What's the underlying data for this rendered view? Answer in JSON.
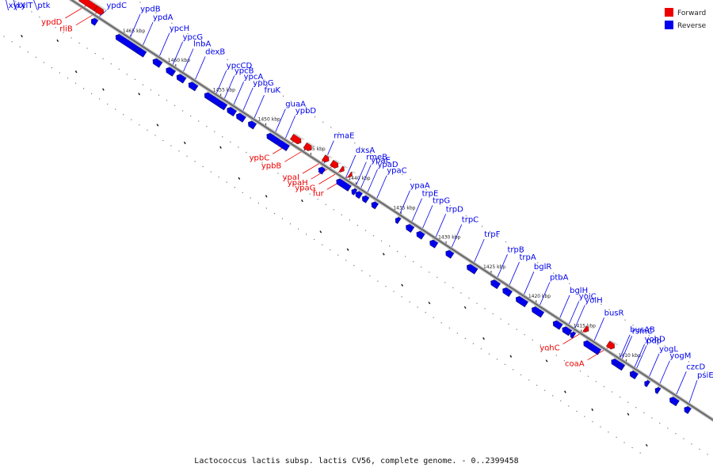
{
  "caption": "Lactococcus lactis subsp. lactis CV56, complete genome. - 0..2399458",
  "legend": [
    {
      "label": "Forward",
      "color": "#ee0000"
    },
    {
      "label": "Reverse",
      "color": "#0000ee"
    }
  ],
  "colors": {
    "forward": "#ee0000",
    "reverse": "#0000ee",
    "backbone": "#999999"
  },
  "ticks": [
    "1465 kbp",
    "1460 kbp",
    "1455 kbp",
    "1450 kbp",
    "1445 kbp",
    "1440 kbp",
    "1435 kbp",
    "1430 kbp",
    "1425 kbp",
    "1420 kbp",
    "1415 kbp",
    "1410 kbp"
  ],
  "genes": [
    {
      "name": "xylX",
      "strand": "reverse"
    },
    {
      "name": "xylT",
      "strand": "reverse"
    },
    {
      "name": "ptk",
      "strand": "reverse"
    },
    {
      "name": "ypdD",
      "strand": "forward"
    },
    {
      "name": "rliB",
      "strand": "forward"
    },
    {
      "name": "ypdC",
      "strand": "reverse"
    },
    {
      "name": "ypdB",
      "strand": "reverse"
    },
    {
      "name": "ypdA",
      "strand": "reverse"
    },
    {
      "name": "ypcH",
      "strand": "reverse"
    },
    {
      "name": "ypcG",
      "strand": "reverse"
    },
    {
      "name": "lnbA",
      "strand": "reverse"
    },
    {
      "name": "dexB",
      "strand": "reverse"
    },
    {
      "name": "ypcCD",
      "strand": "reverse"
    },
    {
      "name": "ypcB",
      "strand": "reverse"
    },
    {
      "name": "ypcA",
      "strand": "reverse"
    },
    {
      "name": "ypbG",
      "strand": "reverse"
    },
    {
      "name": "fruK",
      "strand": "reverse"
    },
    {
      "name": "guaA",
      "strand": "reverse"
    },
    {
      "name": "ypbD",
      "strand": "reverse"
    },
    {
      "name": "rmaE",
      "strand": "reverse"
    },
    {
      "name": "dxsA",
      "strand": "reverse"
    },
    {
      "name": "rmeB",
      "strand": "reverse"
    },
    {
      "name": "ypbC",
      "strand": "forward"
    },
    {
      "name": "ypbB",
      "strand": "forward"
    },
    {
      "name": "ypaE",
      "strand": "reverse"
    },
    {
      "name": "ypaD",
      "strand": "reverse"
    },
    {
      "name": "ypaC",
      "strand": "reverse"
    },
    {
      "name": "ypaI",
      "strand": "forward"
    },
    {
      "name": "ypaH",
      "strand": "forward"
    },
    {
      "name": "ypaG",
      "strand": "forward"
    },
    {
      "name": "fur",
      "strand": "forward"
    },
    {
      "name": "ypaA",
      "strand": "reverse"
    },
    {
      "name": "trpE",
      "strand": "reverse"
    },
    {
      "name": "trpG",
      "strand": "reverse"
    },
    {
      "name": "trpD",
      "strand": "reverse"
    },
    {
      "name": "trpC",
      "strand": "reverse"
    },
    {
      "name": "trpF",
      "strand": "reverse"
    },
    {
      "name": "trpB",
      "strand": "reverse"
    },
    {
      "name": "trpA",
      "strand": "reverse"
    },
    {
      "name": "bglR",
      "strand": "reverse"
    },
    {
      "name": "ptbA",
      "strand": "reverse"
    },
    {
      "name": "bglH",
      "strand": "reverse"
    },
    {
      "name": "yoiC",
      "strand": "reverse"
    },
    {
      "name": "yoiH",
      "strand": "reverse"
    },
    {
      "name": "busR",
      "strand": "reverse"
    },
    {
      "name": "busAB",
      "strand": "reverse"
    },
    {
      "name": "yohD",
      "strand": "reverse"
    },
    {
      "name": "yogL",
      "strand": "reverse"
    },
    {
      "name": "yogM",
      "strand": "reverse"
    },
    {
      "name": "czcD",
      "strand": "reverse"
    },
    {
      "name": "psiE",
      "strand": "reverse"
    },
    {
      "name": "yohC",
      "strand": "forward"
    },
    {
      "name": "coaA",
      "strand": "forward"
    },
    {
      "name": "rsmC",
      "strand": "reverse"
    },
    {
      "name": "pdp",
      "strand": "reverse"
    }
  ]
}
